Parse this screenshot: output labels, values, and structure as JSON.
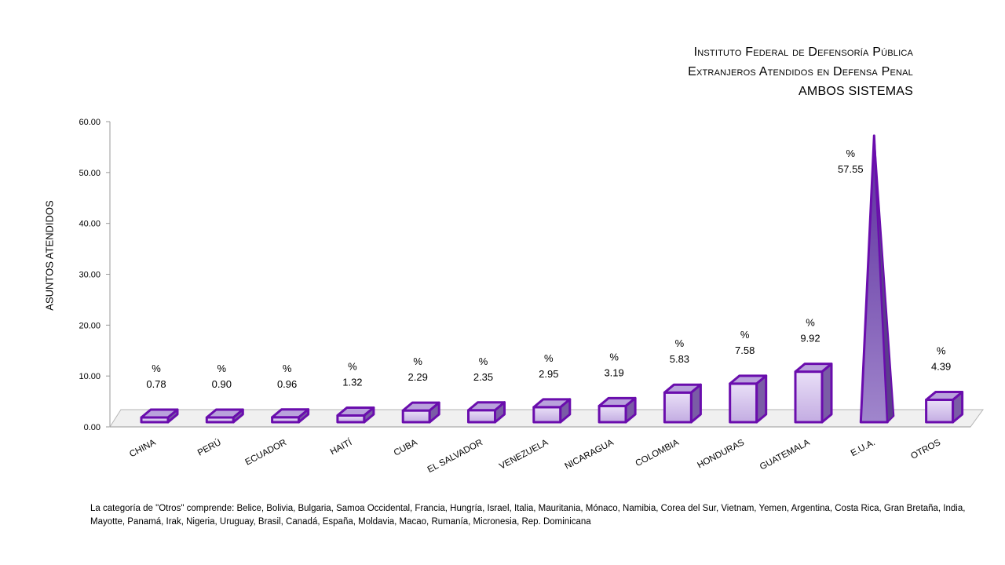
{
  "title": {
    "line1": "Instituto Federal de Defensoría Pública",
    "line2": "Extranjeros  Atendidos en Defensa Penal",
    "line3": "AMBOS SISTEMAS"
  },
  "chart_data": {
    "type": "bar",
    "categories": [
      "CHINA",
      "PERÚ",
      "ECUADOR",
      "HAITÍ",
      "CUBA",
      "EL SALVADOR",
      "VENEZUELA",
      "NICARAGUA",
      "COLOMBIA",
      "HONDURAS",
      "GUATEMALA",
      "E.U.A.",
      "OTROS"
    ],
    "series": [
      {
        "values": [
          0.78,
          0.9,
          0.96,
          1.32,
          2.29,
          2.35,
          2.95,
          3.19,
          5.83,
          7.58,
          9.92,
          57.55,
          4.39
        ]
      }
    ],
    "data_label_prefix": "%",
    "ylabel": "ASUNTOS ATENDIDOS",
    "xlabel": "",
    "ylim": [
      0,
      60
    ],
    "yticks": [
      "0.00",
      "10.00",
      "20.00",
      "30.00",
      "40.00",
      "50.00",
      "60.00"
    ],
    "yticks_values": [
      0,
      10,
      20,
      30,
      40,
      50,
      60
    ],
    "highlight_category": "E.U.A.",
    "highlight_shape": "pyramid",
    "grid": false,
    "legend": "none",
    "colors": {
      "bar_edge": "#6a0dad",
      "bar_light": "#f1ebfa",
      "bar_dark": "#7a5ca6",
      "floor": "#f0f0f0"
    }
  },
  "footnote": "La categoría de \"Otros\" comprende:  Belice, Bolivia, Bulgaria, Samoa Occidental, Francia, Hungría, Israel, Italia, Mauritania, Mónaco, Namibia, Corea del Sur, Vietnam, Yemen, Argentina, Costa Rica, Gran Bretaña,  India, Mayotte, Panamá, Irak, Nigeria, Uruguay, Brasil, Canadá, España, Moldavia, Macao, Rumanía, Micronesia, Rep. Dominicana"
}
